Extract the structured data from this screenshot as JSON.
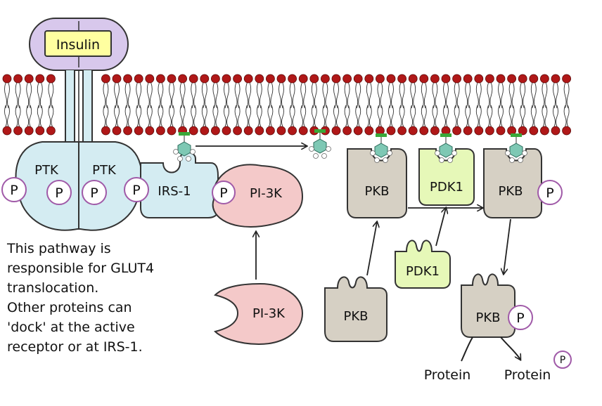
{
  "labels": {
    "insulin": "Insulin",
    "ptk_left": "PTK",
    "ptk_right": "PTK",
    "irs1": "IRS-1",
    "pi3k_bound": "PI-3K",
    "pi3k_free": "PI-3K",
    "pkb_membrane": "PKB",
    "pdk1_membrane": "PDK1",
    "pkb_phos": "PKB",
    "pkb_free": "PKB",
    "pdk1_free": "PDK1",
    "pkb_active": "PKB",
    "protein_in": "Protein",
    "protein_out": "Protein",
    "phosphate": "P"
  },
  "note": {
    "lines": [
      "This pathway is",
      "responsible for GLUT4",
      "translocation.",
      "Other proteins can",
      "'dock' at the active",
      "receptor or at IRS-1."
    ]
  },
  "colors": {
    "membrane_head": "#b01818",
    "receptor": "#d4ecf2",
    "pi3k": "#f4c9c9",
    "pkb": "#d6d0c4",
    "pdk1": "#e6f8b8",
    "insulin_fill": "#ffffa0",
    "insulin_body": "#d8c8ec",
    "phosphate_ring": "#a05aa8",
    "lipid": "#7ec8b4"
  }
}
